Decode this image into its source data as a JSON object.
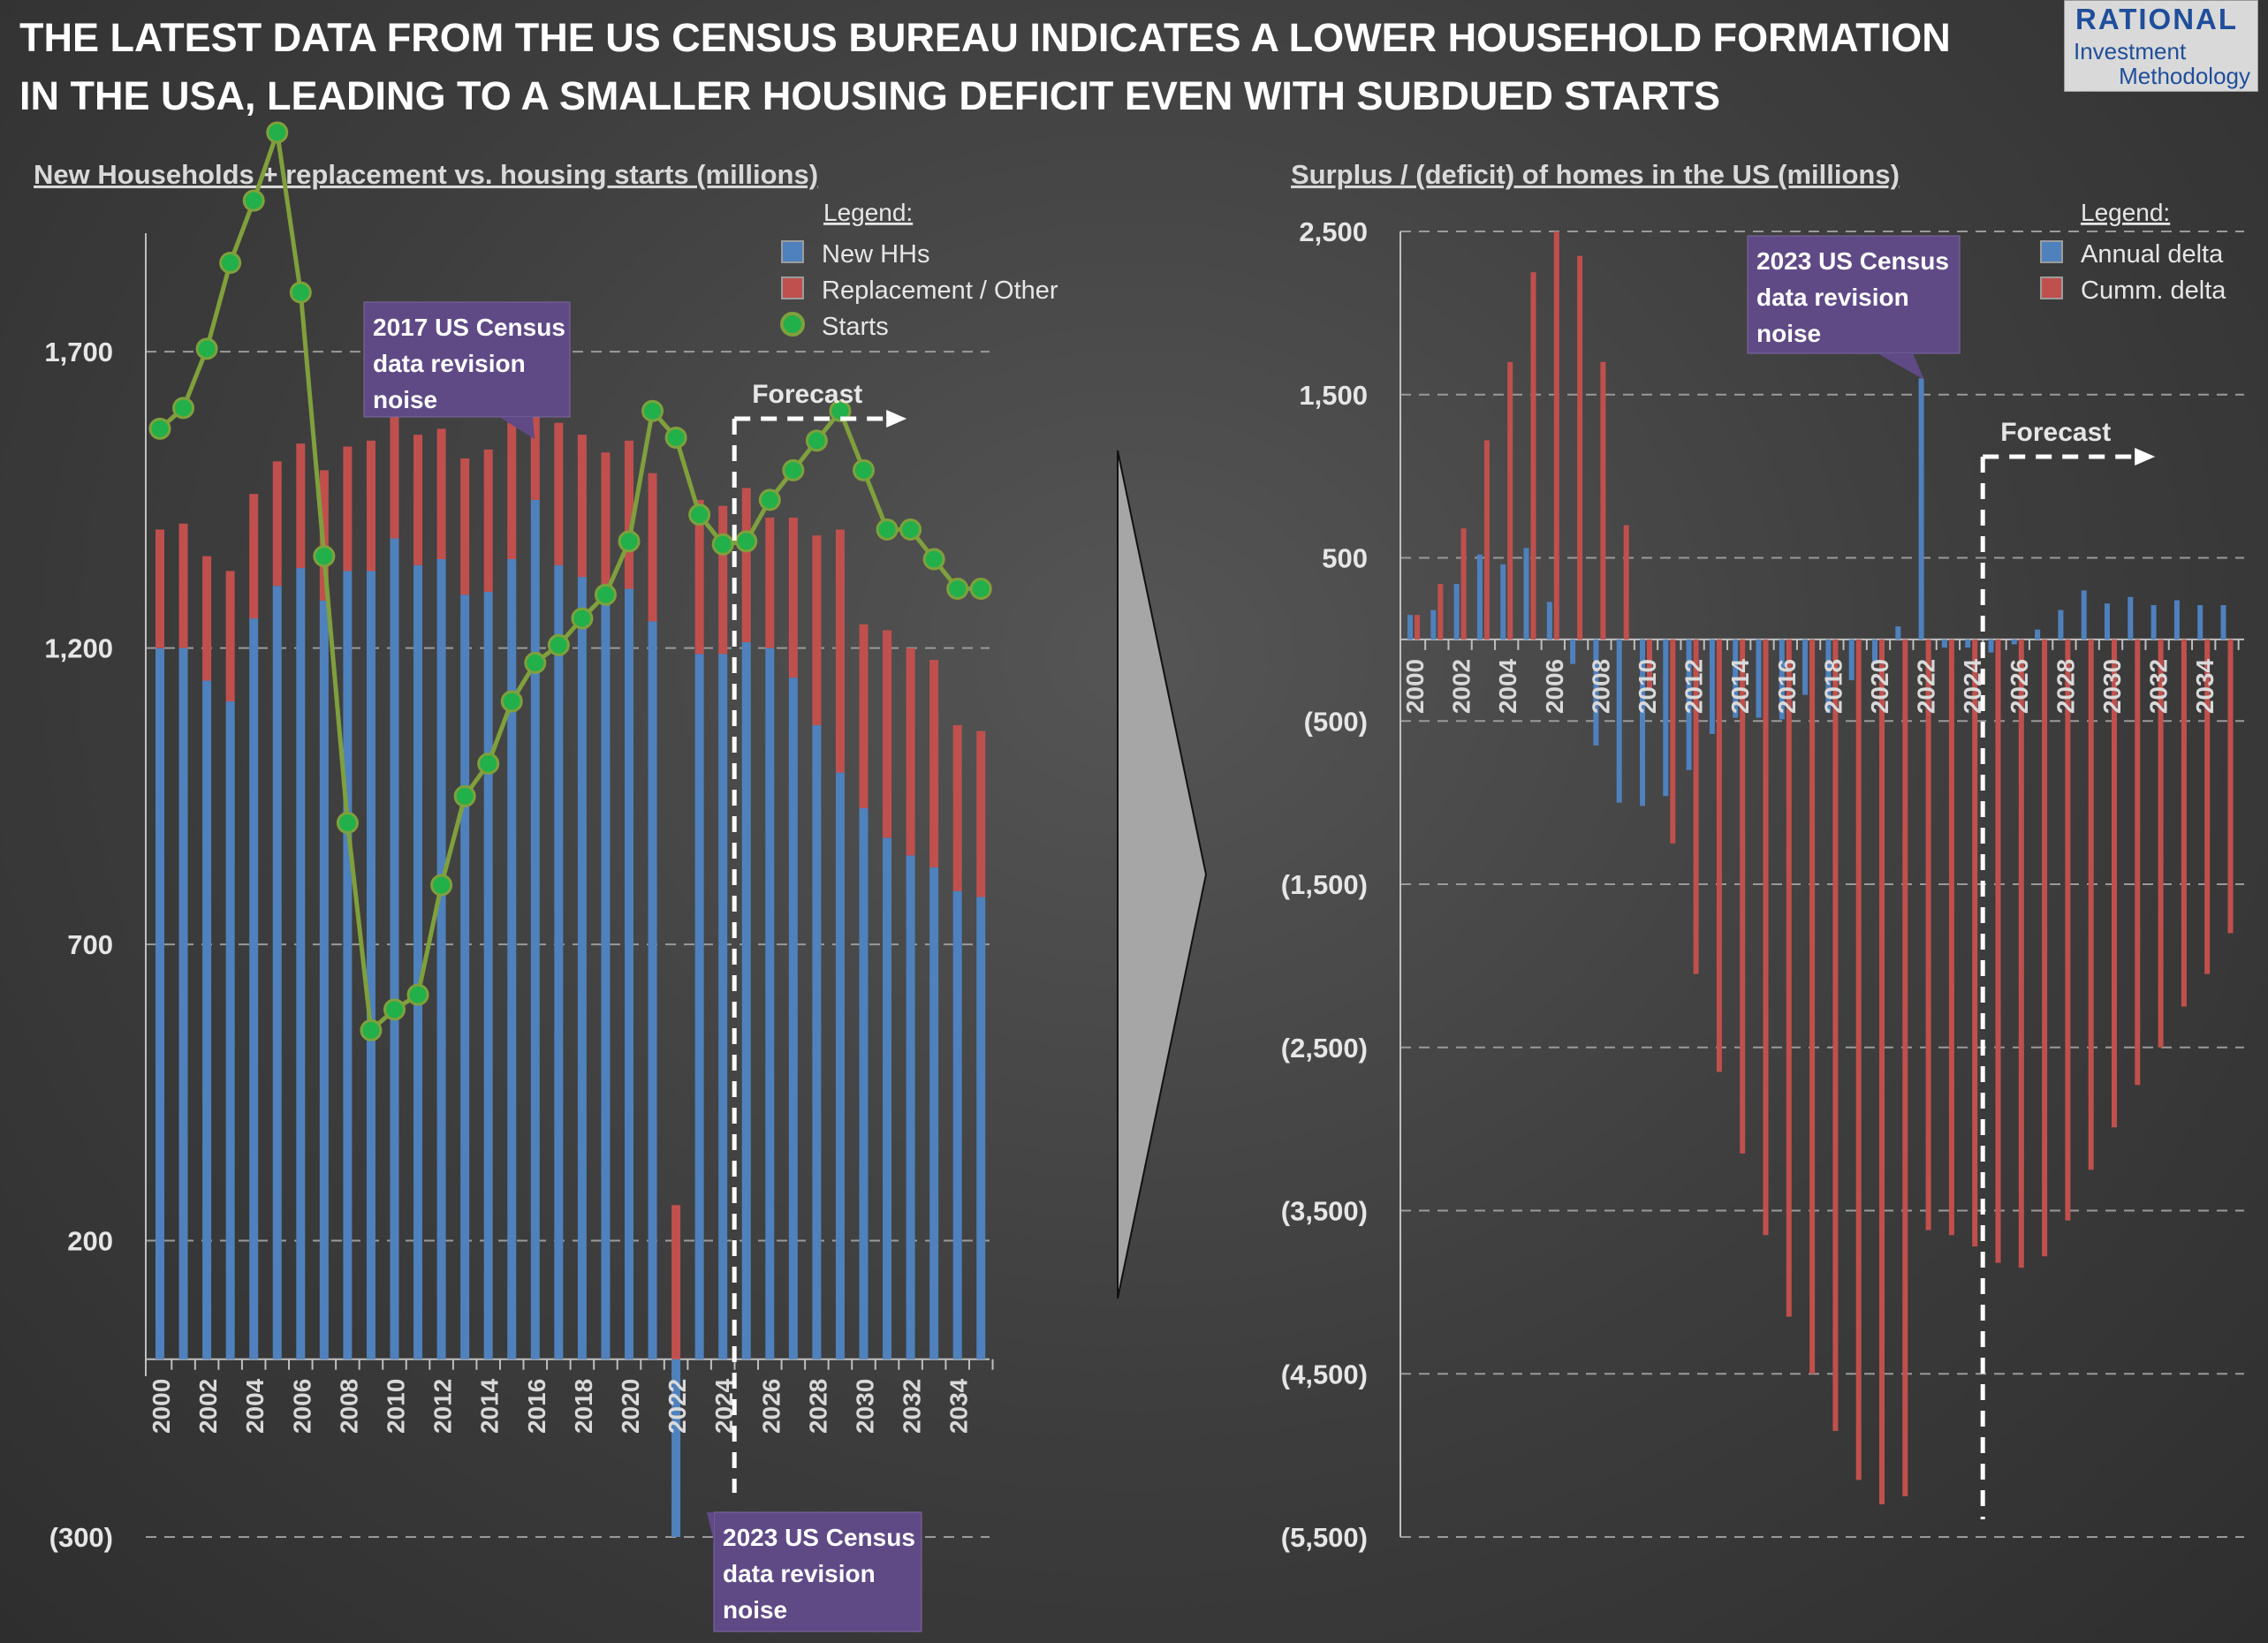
{
  "header": {
    "title_line1": "THE LATEST DATA FROM THE US CENSUS BUREAU INDICATES A LOWER HOUSEHOLD FORMATION",
    "title_line2": "IN THE USA, LEADING TO A SMALLER HOUSING DEFICIT EVEN WITH SUBDUED STARTS"
  },
  "logo": {
    "line1": "RATIONAL",
    "line2": "Investment",
    "line3": "Methodology"
  },
  "colors": {
    "blue": "#4f81bd",
    "red": "#c0504d",
    "green": "#7fa03c",
    "marker": "#22b04a",
    "annotation": "#5f4a86"
  },
  "chart_data": [
    {
      "type": "bar",
      "subtype": "stacked bar + line",
      "title": "New Households + replacement vs. housing starts (millions)",
      "legend_title": "Legend:",
      "legend_position": "top-right",
      "ylim": [
        -300,
        1900
      ],
      "yticks": [
        -300,
        200,
        700,
        1200,
        1700
      ],
      "ytick_labels": [
        "(300)",
        "200",
        "700",
        "1,200",
        "1,700"
      ],
      "grid": true,
      "categories": [
        2000,
        2001,
        2002,
        2003,
        2004,
        2005,
        2006,
        2007,
        2008,
        2009,
        2010,
        2011,
        2012,
        2013,
        2014,
        2015,
        2016,
        2017,
        2018,
        2019,
        2020,
        2021,
        2022,
        2023,
        2024,
        2025,
        2026,
        2027,
        2028,
        2029,
        2030,
        2031,
        2032,
        2033,
        2034,
        2035
      ],
      "xtick_labels": [
        "2000",
        "2002",
        "2004",
        "2006",
        "2008",
        "2010",
        "2012",
        "2014",
        "2016",
        "2018",
        "2020",
        "2022",
        "2024",
        "2026",
        "2028",
        "2030",
        "2032",
        "2034"
      ],
      "series": [
        {
          "name": "New HHs",
          "kind": "bar",
          "values": [
            1200,
            1200,
            1145,
            1110,
            1250,
            1305,
            1335,
            1280,
            1330,
            1330,
            1385,
            1340,
            1350,
            1290,
            1295,
            1350,
            1450,
            1340,
            1320,
            1290,
            1300,
            1245,
            -300,
            1190,
            1190,
            1210,
            1200,
            1150,
            1070,
            990,
            930,
            880,
            850,
            830,
            790,
            780
          ]
        },
        {
          "name": "Replacement / Other",
          "kind": "bar",
          "values": [
            200,
            210,
            210,
            220,
            210,
            210,
            210,
            220,
            210,
            220,
            220,
            220,
            220,
            230,
            240,
            230,
            240,
            240,
            240,
            240,
            250,
            250,
            260,
            260,
            250,
            260,
            220,
            270,
            320,
            410,
            310,
            350,
            350,
            350,
            280,
            280
          ]
        },
        {
          "name": "Starts",
          "kind": "line",
          "values": [
            1570,
            1605,
            1705,
            1850,
            1955,
            2070,
            1800,
            1355,
            905,
            555,
            590,
            615,
            800,
            950,
            1005,
            1110,
            1175,
            1205,
            1250,
            1290,
            1380,
            1600,
            1555,
            1425,
            1375,
            1380,
            1450,
            1500,
            1550,
            1600,
            1500,
            1400,
            1400,
            1350,
            1300,
            1300
          ]
        }
      ],
      "annotations": [
        {
          "text_lines": [
            "2017 US Census",
            "data revision",
            "noise"
          ]
        },
        {
          "text_lines": [
            "2023 US Census",
            "data revision",
            "noise"
          ]
        },
        {
          "text": "Forecast",
          "from": 2024.5
        }
      ]
    },
    {
      "type": "bar",
      "title": "Surplus / (deficit) of homes in the US (millions)",
      "legend_title": "Legend:",
      "legend_position": "top-right",
      "ylim": [
        -5500,
        2500
      ],
      "yticks": [
        -5500,
        -4500,
        -3500,
        -2500,
        -1500,
        -500,
        500,
        1500,
        2500
      ],
      "ytick_labels": [
        "(5,500)",
        "(4,500)",
        "(3,500)",
        "(2,500)",
        "(1,500)",
        "(500)",
        "500",
        "1,500",
        "2,500"
      ],
      "grid": true,
      "categories": [
        2000,
        2001,
        2002,
        2003,
        2004,
        2005,
        2006,
        2007,
        2008,
        2009,
        2010,
        2011,
        2012,
        2013,
        2014,
        2015,
        2016,
        2017,
        2018,
        2019,
        2020,
        2021,
        2022,
        2023,
        2024,
        2025,
        2026,
        2027,
        2028,
        2029,
        2030,
        2031,
        2032,
        2033,
        2034,
        2035
      ],
      "xtick_labels": [
        "2000",
        "2002",
        "2004",
        "2006",
        "2008",
        "2010",
        "2012",
        "2014",
        "2016",
        "2018",
        "2020",
        "2022",
        "2024",
        "2026",
        "2028",
        "2030",
        "2032",
        "2034"
      ],
      "series": [
        {
          "name": "Annual delta",
          "values": [
            150,
            180,
            340,
            520,
            460,
            560,
            230,
            -150,
            -650,
            -1000,
            -1020,
            -960,
            -800,
            -580,
            -480,
            -480,
            -490,
            -340,
            -450,
            -250,
            -150,
            80,
            1600,
            -50,
            -50,
            -80,
            -30,
            60,
            180,
            300,
            220,
            260,
            210,
            240,
            210,
            210
          ]
        },
        {
          "name": "Cumm. delta",
          "values": [
            150,
            340,
            680,
            1220,
            1700,
            2250,
            2500,
            2350,
            1700,
            700,
            -300,
            -1250,
            -2050,
            -2650,
            -3150,
            -3650,
            -4150,
            -4500,
            -4850,
            -5150,
            -5300,
            -5250,
            -3620,
            -3650,
            -3720,
            -3820,
            -3850,
            -3780,
            -3560,
            -3250,
            -2990,
            -2730,
            -2500,
            -2250,
            -2050,
            -1800
          ]
        }
      ],
      "annotations": [
        {
          "text_lines": [
            "2023 US Census",
            "data revision",
            "noise"
          ]
        },
        {
          "text": "Forecast",
          "from": 2024.5
        }
      ]
    }
  ]
}
